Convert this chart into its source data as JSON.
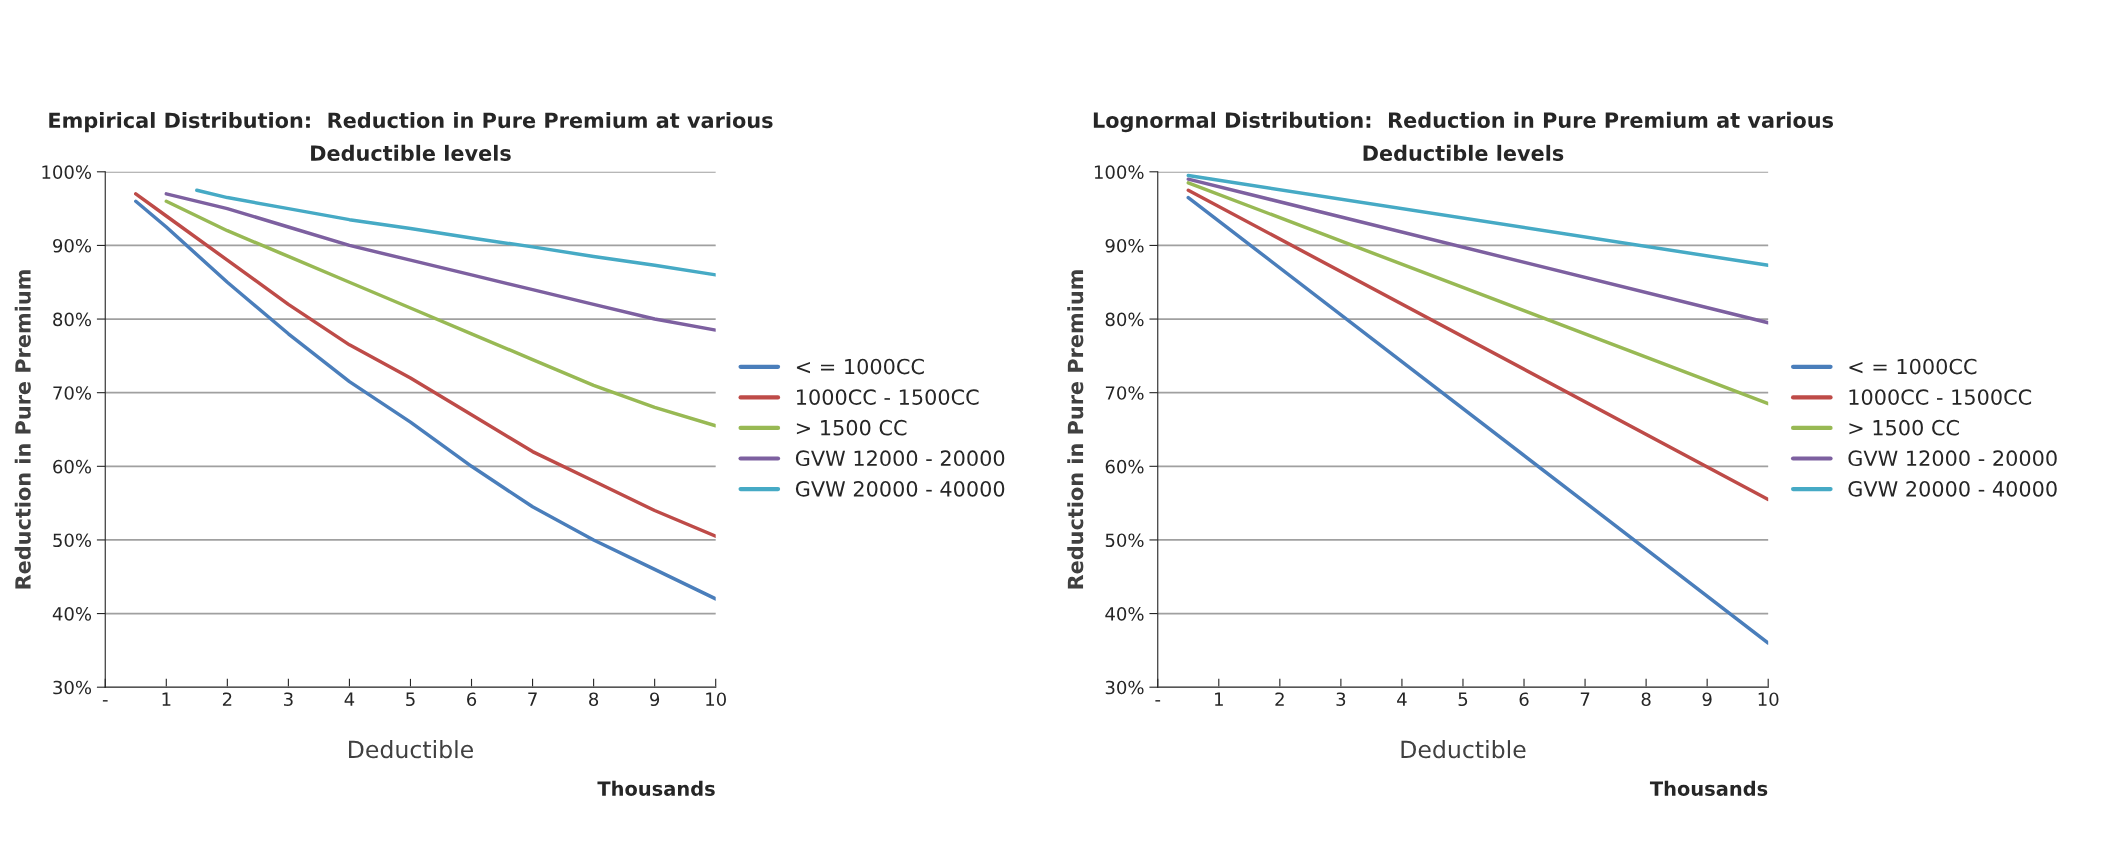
{
  "chart_data": [
    {
      "type": "line",
      "title": "Empirical Distribution:  Reduction in Pure Premium at various\nDeductible levels",
      "xlabel": "Deductible",
      "ylabel": "Reduction in Pure Premium",
      "annotations": [
        "Thousands"
      ],
      "xlim": [
        0,
        10
      ],
      "xticks": [
        {
          "value": 0,
          "label": "-"
        },
        1,
        2,
        3,
        4,
        5,
        6,
        7,
        8,
        9,
        10
      ],
      "ylim": [
        30,
        100
      ],
      "yticks": [
        {
          "value": 30,
          "label": "30%"
        },
        {
          "value": 40,
          "label": "40%"
        },
        {
          "value": 50,
          "label": "50%"
        },
        {
          "value": 60,
          "label": "60%"
        },
        {
          "value": 70,
          "label": "70%"
        },
        {
          "value": 80,
          "label": "80%"
        },
        {
          "value": 90,
          "label": "90%"
        },
        {
          "value": 100,
          "label": "100%"
        }
      ],
      "grid": "y",
      "legend": "right",
      "marker": "none",
      "line_style": "solid",
      "series": [
        {
          "name": "< = 1000CC",
          "color": "#4a7ebb",
          "x": [
            0.5,
            1,
            2,
            3,
            4,
            5,
            6,
            7,
            8,
            9,
            10
          ],
          "values": [
            96,
            92.5,
            85,
            78,
            71.5,
            66,
            60,
            54.5,
            50,
            46,
            42
          ]
        },
        {
          "name": "1000CC - 1500CC",
          "color": "#be4b48",
          "x": [
            0.5,
            1,
            2,
            3,
            4,
            5,
            6,
            7,
            8,
            9,
            10
          ],
          "values": [
            97,
            94,
            88,
            82,
            76.5,
            72,
            67,
            62,
            58,
            54,
            50.5
          ]
        },
        {
          "name": "> 1500 CC",
          "color": "#98b954",
          "x": [
            1,
            2,
            3,
            4,
            5,
            6,
            7,
            8,
            9,
            10
          ],
          "values": [
            96,
            92,
            88.5,
            85,
            81.5,
            78,
            74.5,
            71,
            68,
            65.5
          ]
        },
        {
          "name": "GVW 12000 - 20000",
          "color": "#7d60a0",
          "x": [
            1,
            2,
            3,
            4,
            5,
            6,
            7,
            8,
            9,
            10
          ],
          "values": [
            97,
            95,
            92.5,
            90,
            88,
            86,
            84,
            82,
            80,
            78.5
          ]
        },
        {
          "name": "GVW 20000 - 40000",
          "color": "#46aac5",
          "x": [
            1.5,
            2,
            3,
            4,
            5,
            6,
            7,
            8,
            9,
            10
          ],
          "values": [
            97.5,
            96.5,
            95,
            93.5,
            92.3,
            91,
            89.8,
            88.5,
            87.3,
            86
          ]
        }
      ]
    },
    {
      "type": "line",
      "title": "Lognormal Distribution:  Reduction in Pure Premium at various\nDeductible levels",
      "xlabel": "Deductible",
      "ylabel": "Reduction in Pure Premium",
      "annotations": [
        "Thousands"
      ],
      "xlim": [
        0,
        10
      ],
      "xticks": [
        {
          "value": 0,
          "label": "-"
        },
        1,
        2,
        3,
        4,
        5,
        6,
        7,
        8,
        9,
        10
      ],
      "ylim": [
        30,
        100
      ],
      "yticks": [
        {
          "value": 30,
          "label": "30%"
        },
        {
          "value": 40,
          "label": "40%"
        },
        {
          "value": 50,
          "label": "50%"
        },
        {
          "value": 60,
          "label": "60%"
        },
        {
          "value": 70,
          "label": "70%"
        },
        {
          "value": 80,
          "label": "80%"
        },
        {
          "value": 90,
          "label": "90%"
        },
        {
          "value": 100,
          "label": "100%"
        }
      ],
      "grid": "y",
      "legend": "right",
      "marker": "none",
      "line_style": "solid",
      "series": [
        {
          "name": "< = 1000CC",
          "color": "#4a7ebb",
          "x": [
            0.5,
            10
          ],
          "values": [
            96.5,
            36
          ]
        },
        {
          "name": "1000CC - 1500CC",
          "color": "#be4b48",
          "x": [
            0.5,
            10
          ],
          "values": [
            97.5,
            55.5
          ]
        },
        {
          "name": "> 1500 CC",
          "color": "#98b954",
          "x": [
            0.5,
            10
          ],
          "values": [
            98.5,
            68.5
          ]
        },
        {
          "name": "GVW 12000 - 20000",
          "color": "#7d60a0",
          "x": [
            0.5,
            10
          ],
          "values": [
            99,
            79.5
          ]
        },
        {
          "name": "GVW 20000 - 40000",
          "color": "#46aac5",
          "x": [
            0.5,
            10
          ],
          "values": [
            99.5,
            87.3
          ]
        }
      ]
    }
  ]
}
